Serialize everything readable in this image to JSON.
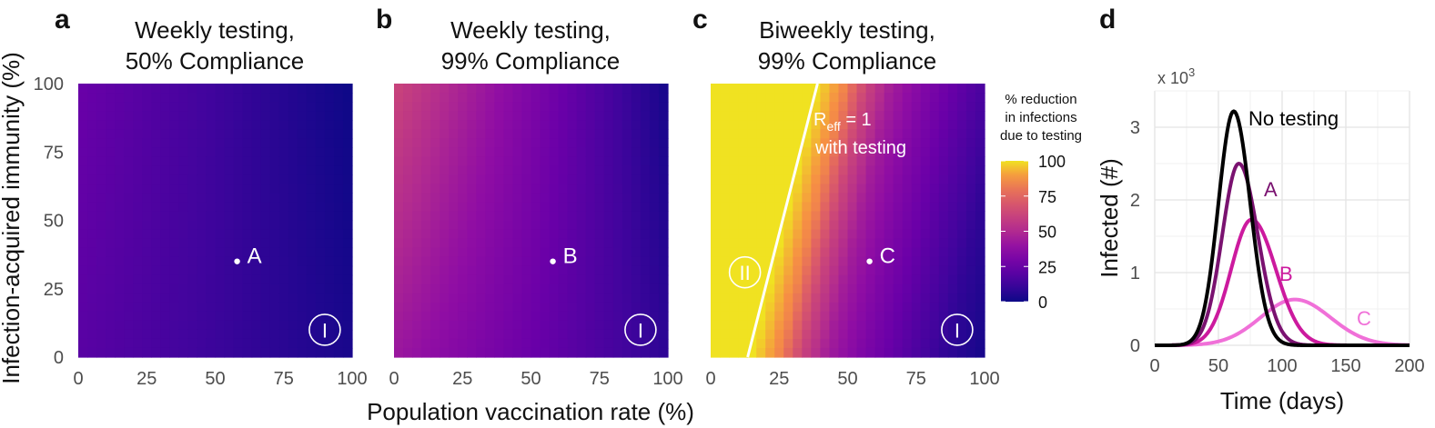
{
  "chart_data": [
    {
      "type": "heatmap",
      "panel": "a",
      "title": [
        "Weekly testing,",
        "50% Compliance"
      ],
      "xlabel": "Population vaccination rate (%)",
      "ylabel": "Infection-acquired immunity (%)",
      "xlim": [
        0,
        100
      ],
      "ylim": [
        0,
        100
      ],
      "xticks": [
        "0",
        "25",
        "50",
        "75",
        "100"
      ],
      "yticks": [
        "0",
        "25",
        "50",
        "75",
        "100"
      ],
      "value_corners": {
        "x0_y0": 20,
        "x0_y100": 25,
        "x100_y0": 3,
        "x100_y100": 0
      },
      "points": [
        {
          "label": "A",
          "x": 58,
          "y": 35
        }
      ],
      "region_labels": [
        {
          "label": "I",
          "x": 90,
          "y": 10
        }
      ]
    },
    {
      "type": "heatmap",
      "panel": "b",
      "title": [
        "Weekly testing,",
        "99% Compliance"
      ],
      "xlim": [
        0,
        100
      ],
      "ylim": [
        0,
        100
      ],
      "xticks": [
        "0",
        "25",
        "50",
        "75",
        "100"
      ],
      "value_corners": {
        "x0_y0": 42,
        "x0_y100": 62,
        "x100_y0": 8,
        "x100_y100": 2
      },
      "points": [
        {
          "label": "B",
          "x": 58,
          "y": 35
        }
      ],
      "region_labels": [
        {
          "label": "I",
          "x": 90,
          "y": 10
        }
      ]
    },
    {
      "type": "heatmap",
      "panel": "c",
      "title": [
        "Biweekly testing,",
        "99% Compliance"
      ],
      "xlim": [
        0,
        100
      ],
      "ylim": [
        0,
        100
      ],
      "xticks": [
        "0",
        "25",
        "50",
        "75",
        "100"
      ],
      "value_profile_at_y0": [
        [
          0,
          100
        ],
        [
          15,
          100
        ],
        [
          25,
          85
        ],
        [
          33,
          62
        ],
        [
          42,
          45
        ],
        [
          55,
          32
        ],
        [
          70,
          20
        ],
        [
          85,
          9
        ],
        [
          100,
          2
        ]
      ],
      "row_shift_at_y100": 24,
      "points": [
        {
          "label": "C",
          "x": 58,
          "y": 35
        }
      ],
      "reff_line": [
        [
          13.5,
          0
        ],
        [
          25,
          45
        ],
        [
          39,
          100
        ]
      ],
      "reff_label": {
        "main": "R",
        "sub": "eff",
        "rest": " = 1",
        "line2": "with testing"
      },
      "region_labels": [
        {
          "label": "II",
          "x": 12.5,
          "y": 31
        },
        {
          "label": "I",
          "x": 90,
          "y": 10
        }
      ],
      "colorbar": {
        "title": [
          "% reduction",
          "in infections",
          "due to testing"
        ],
        "range": [
          0,
          100
        ],
        "ticks": [
          "0",
          "25",
          "50",
          "75",
          "100"
        ]
      }
    },
    {
      "type": "line",
      "panel": "d",
      "xlabel": "Time (days)",
      "ylabel": "Infected (#)",
      "y_multiplier": "x 10",
      "y_multiplier_exp": "3",
      "xlim": [
        0,
        200
      ],
      "ylim": [
        0,
        3.5
      ],
      "xticks": [
        "0",
        "50",
        "100",
        "150",
        "200"
      ],
      "yticks": [
        "0",
        "1",
        "2",
        "3"
      ],
      "grid": true,
      "series": [
        {
          "name": "No testing",
          "color": "#000000",
          "peak_day": 62,
          "peak": 3.22,
          "width_rise": 12,
          "width_fall": 13
        },
        {
          "name": "A",
          "color": "#7a1270",
          "peak_day": 66,
          "peak": 2.5,
          "width_rise": 13,
          "width_fall": 15
        },
        {
          "name": "B",
          "color": "#cc1a9e",
          "peak_day": 76,
          "peak": 1.73,
          "width_rise": 16,
          "width_fall": 19
        },
        {
          "name": "C",
          "color": "#f070d8",
          "peak_day": 110,
          "peak": 0.63,
          "width_rise": 27,
          "width_fall": 28
        }
      ]
    }
  ]
}
